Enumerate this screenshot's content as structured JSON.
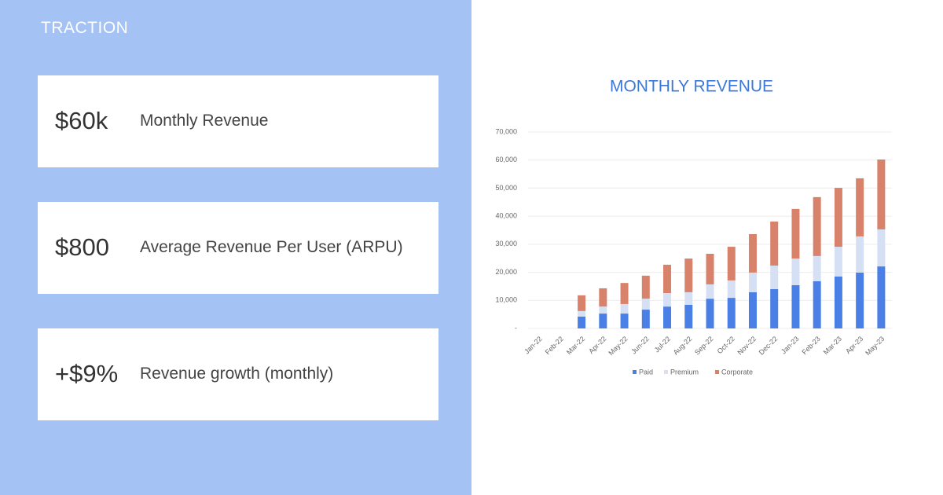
{
  "section_title": "TRACTION",
  "metrics": [
    {
      "value": "$60k",
      "label": "Monthly Revenue"
    },
    {
      "value": "$800",
      "label": "Average Revenue Per User (ARPU)"
    },
    {
      "value": "+$9%",
      "label": "Revenue growth (monthly)"
    }
  ],
  "chart_data": {
    "type": "stacked_bar",
    "title": "MONTHLY REVENUE",
    "categories": [
      "Jan-22",
      "Feb-22",
      "Mar-22",
      "Apr-22",
      "May-22",
      "Jun-22",
      "Jul-22",
      "Aug-22",
      "Sep-22",
      "Oct-22",
      "Nov-22",
      "Dec-22",
      "Jan-23",
      "Feb-23",
      "Mar-23",
      "Apr-23",
      "May-23"
    ],
    "series": [
      {
        "name": "Paid",
        "color": "#4a7fe6",
        "values": [
          null,
          null,
          4200,
          5300,
          5300,
          6700,
          7800,
          8400,
          10600,
          10900,
          12900,
          14000,
          15400,
          16800,
          18500,
          19900,
          22100
        ]
      },
      {
        "name": "Premium",
        "color": "#d6e0f5",
        "values": [
          null,
          null,
          2000,
          2500,
          3400,
          3900,
          4800,
          4500,
          5100,
          6200,
          7000,
          8400,
          9500,
          9000,
          10600,
          12900,
          13200
        ]
      },
      {
        "name": "Corporate",
        "color": "#d9826b",
        "values": [
          null,
          null,
          5600,
          6500,
          7500,
          8200,
          10100,
          12000,
          10900,
          12000,
          13700,
          15700,
          17700,
          21000,
          21000,
          20700,
          24900
        ]
      }
    ],
    "ylim": [
      0,
      70000
    ],
    "yticks": [
      {
        "value": 0,
        "label": "-"
      },
      {
        "value": 10000,
        "label": "10,000"
      },
      {
        "value": 20000,
        "label": "20,000"
      },
      {
        "value": 30000,
        "label": "30,000"
      },
      {
        "value": 40000,
        "label": "40,000"
      },
      {
        "value": 50000,
        "label": "50,000"
      },
      {
        "value": 60000,
        "label": "60,000"
      },
      {
        "value": 70000,
        "label": "70,000"
      }
    ],
    "grid": true,
    "legend": "bottom"
  }
}
